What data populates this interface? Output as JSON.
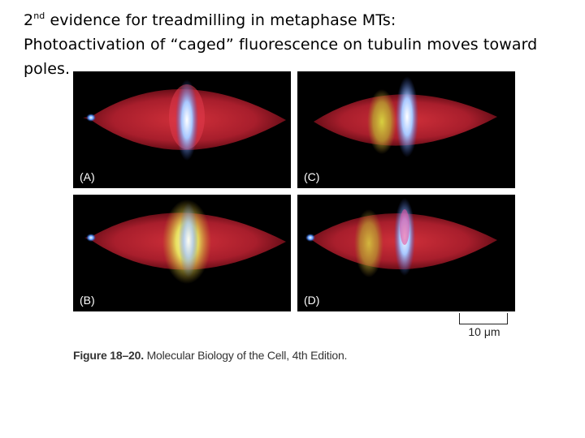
{
  "title": {
    "line1_prefix": "2",
    "line1_sup": "nd",
    "line1_rest": " evidence for treadmilling in metaphase MTs:",
    "line2": "Photoactivation of “caged” fluorescence on tubulin moves toward",
    "line3": "poles."
  },
  "figure": {
    "panels": [
      {
        "label": "(A)",
        "mark_position": "center"
      },
      {
        "label": "(B)",
        "mark_position": "center"
      },
      {
        "label": "(C)",
        "mark_position": "shifted-toward-left-pole"
      },
      {
        "label": "(D)",
        "mark_position": "further-toward-left-pole"
      }
    ],
    "colors": {
      "background": "#000000",
      "spindle": "#b6202e",
      "chromosomes": "#6aa6ff",
      "activated_mark": "#e8e060"
    },
    "scale_bar": "10 μm",
    "caption_bold": "Figure 18–20.",
    "caption_rest": " Molecular Biology of the Cell, 4th Edition."
  }
}
